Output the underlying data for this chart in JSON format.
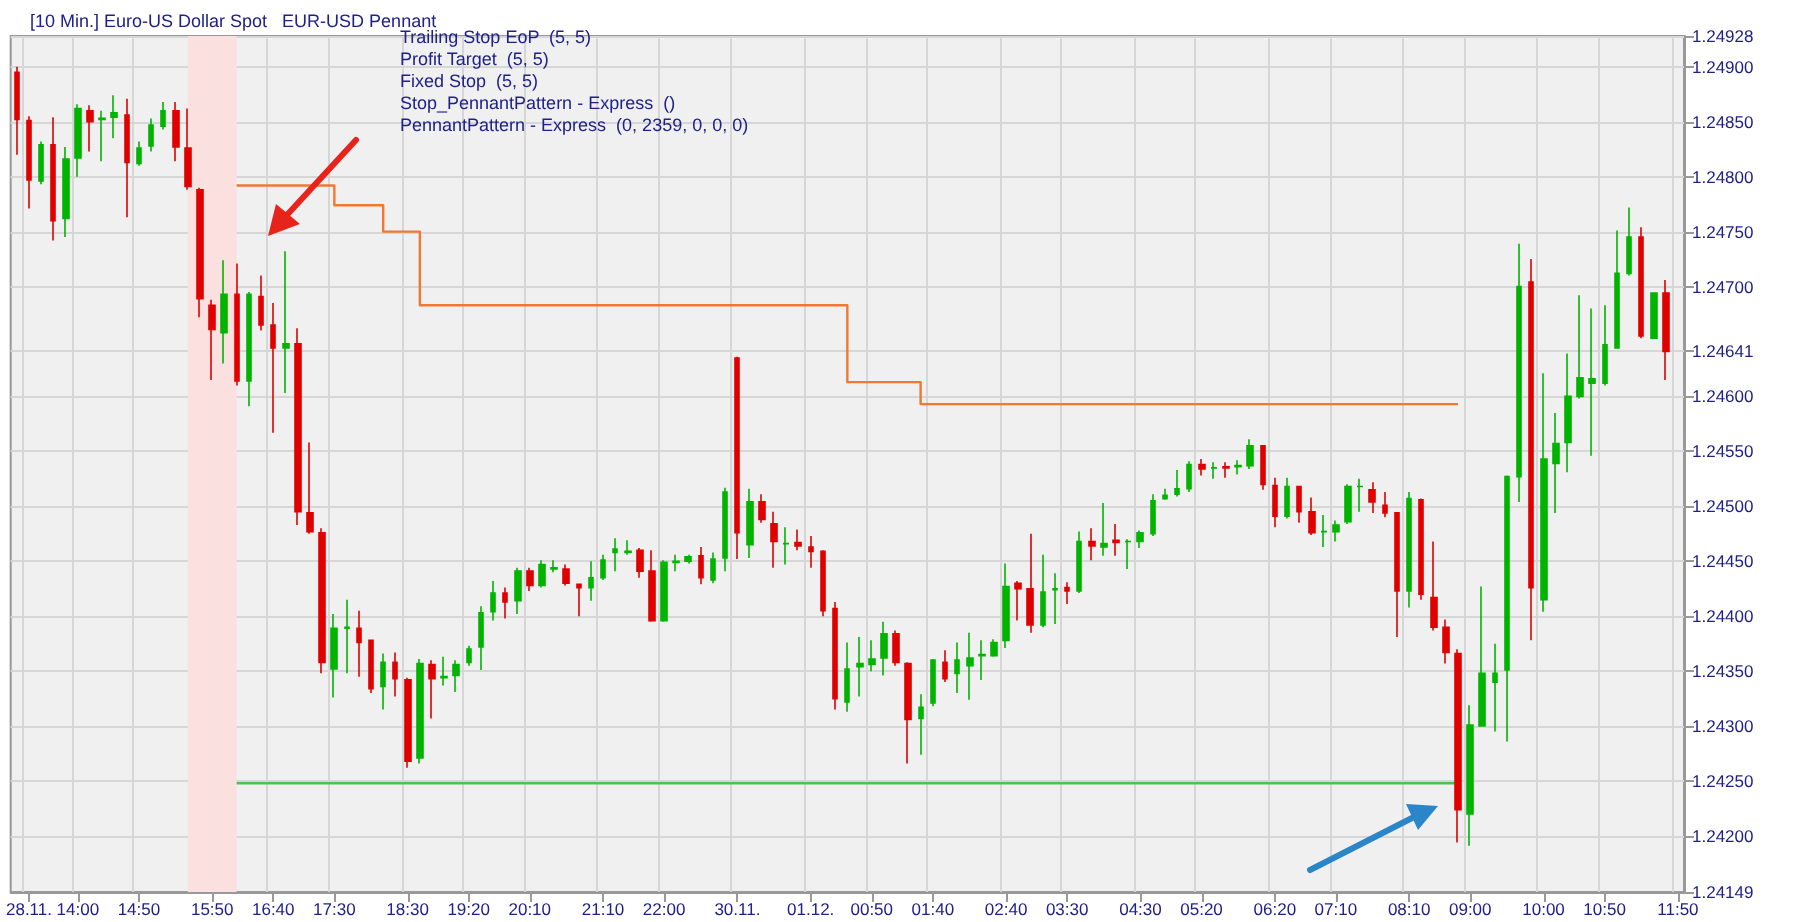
{
  "chart_data": {
    "type": "candlestick",
    "title": "[10 Min.] Euro-US Dollar Spot   EUR-USD Pennant",
    "annotations": [
      "Trailing Stop EoP  (5, 5)",
      "Profit Target  (5, 5)",
      "Fixed Stop  (5, 5)",
      "Stop_PennantPattern - Express  ()",
      "PennantPattern - Express  (0, 2359, 0, 0, 0)"
    ],
    "categories": [
      null,
      "28.11.",
      null,
      null,
      null,
      "14:00",
      null,
      null,
      null,
      null,
      "14:50",
      null,
      null,
      null,
      null,
      null,
      "15:50",
      null,
      null,
      null,
      null,
      "16:40",
      null,
      null,
      null,
      null,
      "17:30",
      null,
      null,
      null,
      null,
      null,
      "18:30",
      null,
      null,
      null,
      null,
      "19:20",
      null,
      null,
      null,
      null,
      "20:10",
      null,
      null,
      null,
      null,
      null,
      "21:10",
      null,
      null,
      null,
      null,
      "22:00",
      null,
      null,
      null,
      null,
      null,
      "30.11.",
      null,
      null,
      null,
      null,
      null,
      "01.12.",
      null,
      null,
      null,
      null,
      "00:50",
      null,
      null,
      null,
      null,
      "01:40",
      null,
      null,
      null,
      null,
      null,
      "02:40",
      null,
      null,
      null,
      null,
      "03:30",
      null,
      null,
      null,
      null,
      null,
      "04:30",
      null,
      null,
      null,
      null,
      "05:20",
      null,
      null,
      null,
      null,
      null,
      "06:20",
      null,
      null,
      null,
      null,
      "07:10",
      null,
      null,
      null,
      null,
      null,
      "08:10",
      null,
      null,
      null,
      null,
      "09:00",
      null,
      null,
      null,
      null,
      null,
      "10:00",
      null,
      null,
      null,
      null,
      "10:50",
      null,
      null,
      null,
      null,
      null,
      "11:50"
    ],
    "series": [
      {
        "colors": [
          "#e00000",
          "#e00000",
          "#00b400",
          "#e00000",
          "#00b400",
          "#00b400",
          "#e00000",
          "#00b400",
          "#00b400",
          "#e00000",
          "#00b400",
          "#00b400",
          "#00b400",
          "#e00000",
          "#e00000",
          "#e00000",
          "#e00000",
          "#00b400",
          "#e00000",
          "#00b400",
          "#e00000",
          "#e00000",
          "#00b400",
          "#e00000",
          "#e00000",
          "#e00000",
          "#00b400",
          "#00b400",
          "#e00000",
          "#e00000",
          "#00b400",
          "#e00000",
          "#e00000",
          "#00b400",
          "#e00000",
          "#00b400",
          "#00b400",
          "#00b400",
          "#00b400",
          "#00b400",
          "#e00000",
          "#00b400",
          "#e00000",
          "#00b400",
          "#00b400",
          "#e00000",
          "#e00000",
          "#00b400",
          "#00b400",
          "#00b400",
          "#00b400",
          "#e00000",
          "#e00000",
          "#00b400",
          "#00b400",
          "#00b400",
          "#e00000",
          "#00b400",
          "#00b400",
          "#e00000",
          "#00b400",
          "#e00000",
          "#e00000",
          "#00b400",
          "#e00000",
          "#e00000",
          "#e00000",
          "#e00000",
          "#00b400",
          "#00b400",
          "#00b400",
          "#00b400",
          "#e00000",
          "#e00000",
          "#00b400",
          "#00b400",
          "#e00000",
          "#00b400",
          "#00b400",
          "#00b400",
          "#00b400",
          "#00b400",
          "#e00000",
          "#e00000",
          "#00b400",
          "#00b400",
          "#e00000",
          "#00b400",
          "#e00000",
          "#00b400",
          "#e00000",
          "#00b400",
          "#00b400",
          "#00b400",
          "#00b400",
          "#00b400",
          "#00b400",
          "#e00000",
          "#00b400",
          "#e00000",
          "#00b400",
          "#00b400",
          "#e00000",
          "#e00000",
          "#00b400",
          "#e00000",
          "#e00000",
          "#00b400",
          "#00b400",
          "#00b400",
          "#00b400",
          "#e00000",
          "#e00000",
          "#e00000",
          "#00b400",
          "#e00000",
          "#e00000",
          "#e00000",
          "#e00000",
          "#00b400",
          "#00b400",
          "#00b400",
          "#00b400",
          "#00b400",
          "#e00000",
          "#00b400",
          "#00b400",
          "#00b400",
          "#00b400",
          "#00b400",
          "#00b400",
          "#00b400",
          "#00b400",
          "#e00000",
          "#00b400",
          "#e00000",
          null
        ],
        "ohlc": [
          [
            1.24895,
            1.249,
            1.2482,
            1.24852
          ],
          [
            1.24851,
            1.24855,
            1.24771,
            1.24797
          ],
          [
            1.24796,
            1.24832,
            1.24793,
            1.24829
          ],
          [
            1.24829,
            1.24854,
            1.24742,
            1.2476
          ],
          [
            1.24762,
            1.24827,
            1.24745,
            1.24816
          ],
          [
            1.24817,
            1.24866,
            1.248,
            1.24862
          ],
          [
            1.2486,
            1.24865,
            1.24823,
            1.2485
          ],
          [
            1.24852,
            1.2486,
            1.24814,
            1.24853
          ],
          [
            1.24854,
            1.24874,
            1.24835,
            1.24858
          ],
          [
            1.24856,
            1.24871,
            1.24763,
            1.24813
          ],
          [
            1.24812,
            1.24832,
            1.2481,
            1.24826
          ],
          [
            1.24828,
            1.24853,
            1.24823,
            1.24847
          ],
          [
            1.24846,
            1.24868,
            1.24843,
            1.2486
          ],
          [
            1.2486,
            1.24868,
            1.24814,
            1.24827
          ],
          [
            1.24826,
            1.24862,
            1.24788,
            1.24791
          ],
          [
            1.24788,
            1.2479,
            1.24672,
            1.24689
          ],
          [
            1.24683,
            1.24688,
            1.24615,
            1.24661
          ],
          [
            1.24658,
            1.24724,
            1.2463,
            1.24693
          ],
          [
            1.24693,
            1.24721,
            1.2461,
            1.24614
          ],
          [
            1.24614,
            1.24695,
            1.24591,
            1.24693
          ],
          [
            1.24691,
            1.2471,
            1.2466,
            1.24665
          ],
          [
            1.24665,
            1.24685,
            1.24567,
            1.24644
          ],
          [
            1.24644,
            1.24732,
            1.24603,
            1.24648
          ],
          [
            1.24648,
            1.24662,
            1.24483,
            1.24495
          ],
          [
            1.24494,
            1.24558,
            1.24475,
            1.24477
          ],
          [
            1.24476,
            1.2448,
            1.24348,
            1.24358
          ],
          [
            1.24352,
            1.24402,
            1.24326,
            1.24389
          ],
          [
            1.24389,
            1.24415,
            1.24348,
            1.2439
          ],
          [
            1.24389,
            1.24405,
            1.24345,
            1.24376
          ],
          [
            1.24378,
            1.24378,
            1.2433,
            1.24334
          ],
          [
            1.24336,
            1.24366,
            1.24315,
            1.24358
          ],
          [
            1.24358,
            1.24367,
            1.24327,
            1.24343
          ],
          [
            1.24342,
            1.24344,
            1.24262,
            1.24268
          ],
          [
            1.24271,
            1.24361,
            1.24266,
            1.24357
          ],
          [
            1.24356,
            1.2436,
            1.24307,
            1.24343
          ],
          [
            1.24344,
            1.24363,
            1.24337,
            1.24345
          ],
          [
            1.24346,
            1.2436,
            1.24331,
            1.24356
          ],
          [
            1.24358,
            1.24373,
            1.24355,
            1.2437
          ],
          [
            1.24372,
            1.24409,
            1.24351,
            1.24403
          ],
          [
            1.24404,
            1.24432,
            1.24396,
            1.24421
          ],
          [
            1.24421,
            1.24426,
            1.24398,
            1.24413
          ],
          [
            1.24414,
            1.24444,
            1.24402,
            1.24441
          ],
          [
            1.24441,
            1.24444,
            1.24423,
            1.24428
          ],
          [
            1.24428,
            1.24451,
            1.24426,
            1.24447
          ],
          [
            1.24443,
            1.24451,
            1.2444,
            1.24444
          ],
          [
            1.24443,
            1.24447,
            1.24428,
            1.2443
          ],
          [
            1.24429,
            1.24429,
            1.244,
            1.24426
          ],
          [
            1.24426,
            1.2445,
            1.24414,
            1.24435
          ],
          [
            1.24435,
            1.24456,
            1.24433,
            1.24451
          ],
          [
            1.24458,
            1.24471,
            1.24441,
            1.24461
          ],
          [
            1.24458,
            1.24469,
            1.24456,
            1.24459
          ],
          [
            1.2446,
            1.24462,
            1.24435,
            1.24441
          ],
          [
            1.24441,
            1.2446,
            1.24395,
            1.24396
          ],
          [
            1.24396,
            1.24451,
            1.24395,
            1.24449
          ],
          [
            1.24449,
            1.24456,
            1.24441,
            1.2445
          ],
          [
            1.2445,
            1.24456,
            1.24448,
            1.24454
          ],
          [
            1.24455,
            1.24463,
            1.24429,
            1.24435
          ],
          [
            1.24433,
            1.24458,
            1.2443,
            1.24452
          ],
          [
            1.24453,
            1.24517,
            1.24441,
            1.24513
          ],
          [
            1.24635,
            1.24636,
            1.24452,
            1.24476
          ],
          [
            1.24465,
            1.24516,
            1.24453,
            1.24504
          ],
          [
            1.24504,
            1.24511,
            1.24485,
            1.24488
          ],
          [
            1.24484,
            1.24495,
            1.24444,
            1.24468
          ],
          [
            1.24466,
            1.24481,
            1.24447,
            1.24466
          ],
          [
            1.24467,
            1.24479,
            1.2446,
            1.24464
          ],
          [
            1.24463,
            1.24473,
            1.24444,
            1.24459
          ],
          [
            1.24459,
            1.2446,
            1.244,
            1.24405
          ],
          [
            1.24407,
            1.24413,
            1.24315,
            1.24325
          ],
          [
            1.24322,
            1.24376,
            1.24313,
            1.24352
          ],
          [
            1.24354,
            1.24381,
            1.24327,
            1.24357
          ],
          [
            1.24356,
            1.24378,
            1.2435,
            1.24361
          ],
          [
            1.24362,
            1.24395,
            1.24346,
            1.24384
          ],
          [
            1.24384,
            1.24387,
            1.24355,
            1.24358
          ],
          [
            1.24357,
            1.24358,
            1.24266,
            1.24306
          ],
          [
            1.24307,
            1.24329,
            1.24274,
            1.24317
          ],
          [
            1.24321,
            1.24361,
            1.24318,
            1.2436
          ],
          [
            1.24358,
            1.24369,
            1.2434,
            1.24343
          ],
          [
            1.24348,
            1.24376,
            1.2433,
            1.2436
          ],
          [
            1.24355,
            1.24385,
            1.24324,
            1.24362
          ],
          [
            1.24364,
            1.24378,
            1.24342,
            1.24365
          ],
          [
            1.24364,
            1.24379,
            1.24363,
            1.24376
          ],
          [
            1.24378,
            1.24448,
            1.24371,
            1.24427
          ],
          [
            1.2443,
            1.24432,
            1.24396,
            1.24425
          ],
          [
            1.24425,
            1.24475,
            1.24385,
            1.24392
          ],
          [
            1.24392,
            1.24456,
            1.2439,
            1.24422
          ],
          [
            1.24424,
            1.24439,
            1.24393,
            1.24425
          ],
          [
            1.24426,
            1.24431,
            1.24411,
            1.24423
          ],
          [
            1.24423,
            1.24477,
            1.24421,
            1.24468
          ],
          [
            1.24468,
            1.2448,
            1.24451,
            1.24464
          ],
          [
            1.24463,
            1.24503,
            1.24455,
            1.24466
          ],
          [
            1.24469,
            1.24484,
            1.24455,
            1.24467
          ],
          [
            1.24468,
            1.2447,
            1.24443,
            1.24468
          ],
          [
            1.24468,
            1.24478,
            1.24462,
            1.24476
          ],
          [
            1.24475,
            1.24511,
            1.24473,
            1.24505
          ],
          [
            1.24507,
            1.24516,
            1.24506,
            1.2451
          ],
          [
            1.24511,
            1.24533,
            1.24509,
            1.24516
          ],
          [
            1.24516,
            1.24541,
            1.24513,
            1.24538
          ],
          [
            1.24538,
            1.24543,
            1.24528,
            1.24534
          ],
          [
            1.24535,
            1.2454,
            1.24525,
            1.24535
          ],
          [
            1.24536,
            1.2454,
            1.24526,
            1.24535
          ],
          [
            1.24536,
            1.24542,
            1.24529,
            1.24537
          ],
          [
            1.24537,
            1.24561,
            1.24534,
            1.24555
          ],
          [
            1.24555,
            1.24555,
            1.24515,
            1.2452
          ],
          [
            1.24519,
            1.24526,
            1.24481,
            1.24491
          ],
          [
            1.24491,
            1.24526,
            1.24489,
            1.24518
          ],
          [
            1.24518,
            1.24518,
            1.24485,
            1.24495
          ],
          [
            1.24495,
            1.24508,
            1.24474,
            1.24476
          ],
          [
            1.24477,
            1.24492,
            1.24463,
            1.24477
          ],
          [
            1.24477,
            1.24487,
            1.24468,
            1.24483
          ],
          [
            1.24486,
            1.2452,
            1.24484,
            1.24518
          ],
          [
            1.24518,
            1.24525,
            1.24495,
            1.24518
          ],
          [
            1.24515,
            1.24522,
            1.24494,
            1.24504
          ],
          [
            1.24501,
            1.24513,
            1.2449,
            1.24494
          ],
          [
            1.24494,
            1.24494,
            1.24381,
            1.24423
          ],
          [
            1.24423,
            1.24513,
            1.24408,
            1.24507
          ],
          [
            1.24506,
            1.24507,
            1.24415,
            1.2442
          ],
          [
            1.24417,
            1.24468,
            1.24387,
            1.2439
          ],
          [
            1.2439,
            1.24397,
            1.24357,
            1.24367
          ],
          [
            1.24366,
            1.2437,
            1.24194,
            1.24224
          ],
          [
            1.2422,
            1.24319,
            1.24191,
            1.24301
          ],
          [
            1.243,
            1.24427,
            1.243,
            1.24348
          ],
          [
            1.2434,
            1.24375,
            1.24295,
            1.24348
          ],
          [
            1.24351,
            1.24528,
            1.24286,
            1.24527
          ],
          [
            1.24527,
            1.24739,
            1.24504,
            1.247
          ],
          [
            1.24704,
            1.24725,
            1.24378,
            1.24426
          ],
          [
            1.24415,
            1.24621,
            1.24404,
            1.24543
          ],
          [
            1.24539,
            1.24585,
            1.24494,
            1.24557
          ],
          [
            1.24558,
            1.24639,
            1.24531,
            1.246
          ],
          [
            1.246,
            1.24692,
            1.24598,
            1.24617
          ],
          [
            1.24612,
            1.2468,
            1.24546,
            1.24616
          ],
          [
            1.24612,
            1.24683,
            1.2461,
            1.24647
          ],
          [
            1.24644,
            1.24751,
            1.24644,
            1.24712
          ],
          [
            1.24712,
            1.24772,
            1.2471,
            1.24745
          ],
          [
            1.24745,
            1.24754,
            1.24653,
            1.24655
          ],
          [
            1.24653,
            1.24694,
            1.24652,
            1.24694
          ],
          [
            1.24694,
            1.24706,
            1.24615,
            1.24641
          ],
          null
        ]
      },
      {
        "type": "step",
        "color": "#f07830",
        "values": [
          null,
          null,
          null,
          null,
          null,
          null,
          null,
          null,
          null,
          null,
          null,
          null,
          null,
          null,
          null,
          null,
          null,
          null,
          1.24792,
          1.24792,
          1.24792,
          1.24792,
          1.24792,
          1.24792,
          1.24792,
          1.24792,
          1.24774,
          1.24774,
          1.24774,
          1.24774,
          1.2475,
          1.2475,
          1.2475,
          1.24683,
          1.24683,
          1.24683,
          1.24683,
          1.24683,
          1.24683,
          1.24683,
          1.24683,
          1.24683,
          1.24683,
          1.24683,
          1.24683,
          1.24683,
          1.24683,
          1.24683,
          1.24683,
          1.24683,
          1.24683,
          1.24683,
          1.24683,
          1.24683,
          1.24683,
          1.24683,
          1.24683,
          1.24683,
          1.24683,
          1.24683,
          1.24683,
          1.24683,
          1.24683,
          1.24683,
          1.24683,
          1.24683,
          1.24683,
          1.24683,
          1.24613,
          1.24613,
          1.24613,
          1.24613,
          1.24613,
          1.24613,
          1.24593,
          1.24593,
          1.24593,
          1.24593,
          1.24593,
          1.24593,
          1.24593,
          1.24593,
          1.24593,
          1.24593,
          1.24593,
          1.24593,
          1.24593,
          1.24593,
          1.24593,
          1.24593,
          1.24593,
          1.24593,
          1.24593,
          1.24593,
          1.24593,
          1.24593,
          1.24593,
          1.24593,
          1.24593,
          1.24593,
          1.24593,
          1.24593,
          1.24593,
          1.24593,
          1.24593,
          1.24593,
          1.24593,
          1.24593,
          1.24593,
          1.24593,
          1.24593,
          1.24593,
          1.24593,
          1.24593,
          1.24593,
          1.24593,
          1.24593,
          1.24593,
          1.24593,
          null,
          null,
          null,
          null,
          null,
          null,
          null,
          null,
          null,
          null,
          null,
          null,
          null,
          null,
          null,
          null,
          null,
          null
        ]
      },
      {
        "type": "line",
        "color": "#50c050",
        "values": [
          null,
          null,
          null,
          null,
          null,
          null,
          null,
          null,
          null,
          null,
          null,
          null,
          null,
          null,
          null,
          null,
          null,
          null,
          1.24248,
          1.24248,
          1.24248,
          1.24248,
          1.24248,
          1.24248,
          1.24248,
          1.24248,
          1.24248,
          1.24248,
          1.24248,
          1.24248,
          1.24248,
          1.24248,
          1.24248,
          1.24248,
          1.24248,
          1.24248,
          1.24248,
          1.24248,
          1.24248,
          1.24248,
          1.24248,
          1.24248,
          1.24248,
          1.24248,
          1.24248,
          1.24248,
          1.24248,
          1.24248,
          1.24248,
          1.24248,
          1.24248,
          1.24248,
          1.24248,
          1.24248,
          1.24248,
          1.24248,
          1.24248,
          1.24248,
          1.24248,
          1.24248,
          1.24248,
          1.24248,
          1.24248,
          1.24248,
          1.24248,
          1.24248,
          1.24248,
          1.24248,
          1.24248,
          1.24248,
          1.24248,
          1.24248,
          1.24248,
          1.24248,
          1.24248,
          1.24248,
          1.24248,
          1.24248,
          1.24248,
          1.24248,
          1.24248,
          1.24248,
          1.24248,
          1.24248,
          1.24248,
          1.24248,
          1.24248,
          1.24248,
          1.24248,
          1.24248,
          1.24248,
          1.24248,
          1.24248,
          1.24248,
          1.24248,
          1.24248,
          1.24248,
          1.24248,
          1.24248,
          1.24248,
          1.24248,
          1.24248,
          1.24248,
          1.24248,
          1.24248,
          1.24248,
          1.24248,
          1.24248,
          1.24248,
          1.24248,
          1.24248,
          1.24248,
          1.24248,
          1.24248,
          1.24248,
          1.24248,
          1.24248,
          1.24248,
          1.24248,
          null,
          null,
          null,
          null,
          null,
          null,
          null,
          null,
          null,
          null,
          null,
          null,
          null,
          null,
          null,
          null,
          null,
          null
        ]
      }
    ],
    "ylim": [
      1.24149,
      1.24928
    ],
    "yticks": [
      {
        "value": 1.24149,
        "label": "1.24149"
      },
      {
        "value": 1.24641,
        "label": "1.24641"
      },
      {
        "value": 1.242,
        "label": "1.24200"
      },
      {
        "value": 1.2425,
        "label": "1.24250"
      },
      {
        "value": 1.243,
        "label": "1.24300"
      },
      {
        "value": 1.2435,
        "label": "1.24350"
      },
      {
        "value": 1.244,
        "label": "1.24400"
      },
      {
        "value": 1.2445,
        "label": "1.24450"
      },
      {
        "value": 1.245,
        "label": "1.24500"
      },
      {
        "value": 1.2455,
        "label": "1.24550"
      },
      {
        "value": 1.246,
        "label": "1.24600"
      },
      {
        "value": 1.247,
        "label": "1.24700"
      },
      {
        "value": 1.2475,
        "label": "1.24750"
      },
      {
        "value": 1.248,
        "label": "1.24800"
      },
      {
        "value": 1.2485,
        "label": "1.24850"
      },
      {
        "value": 1.249,
        "label": "1.24900"
      },
      {
        "value": 1.24928,
        "label": "1.24928"
      }
    ],
    "grid": true
  }
}
